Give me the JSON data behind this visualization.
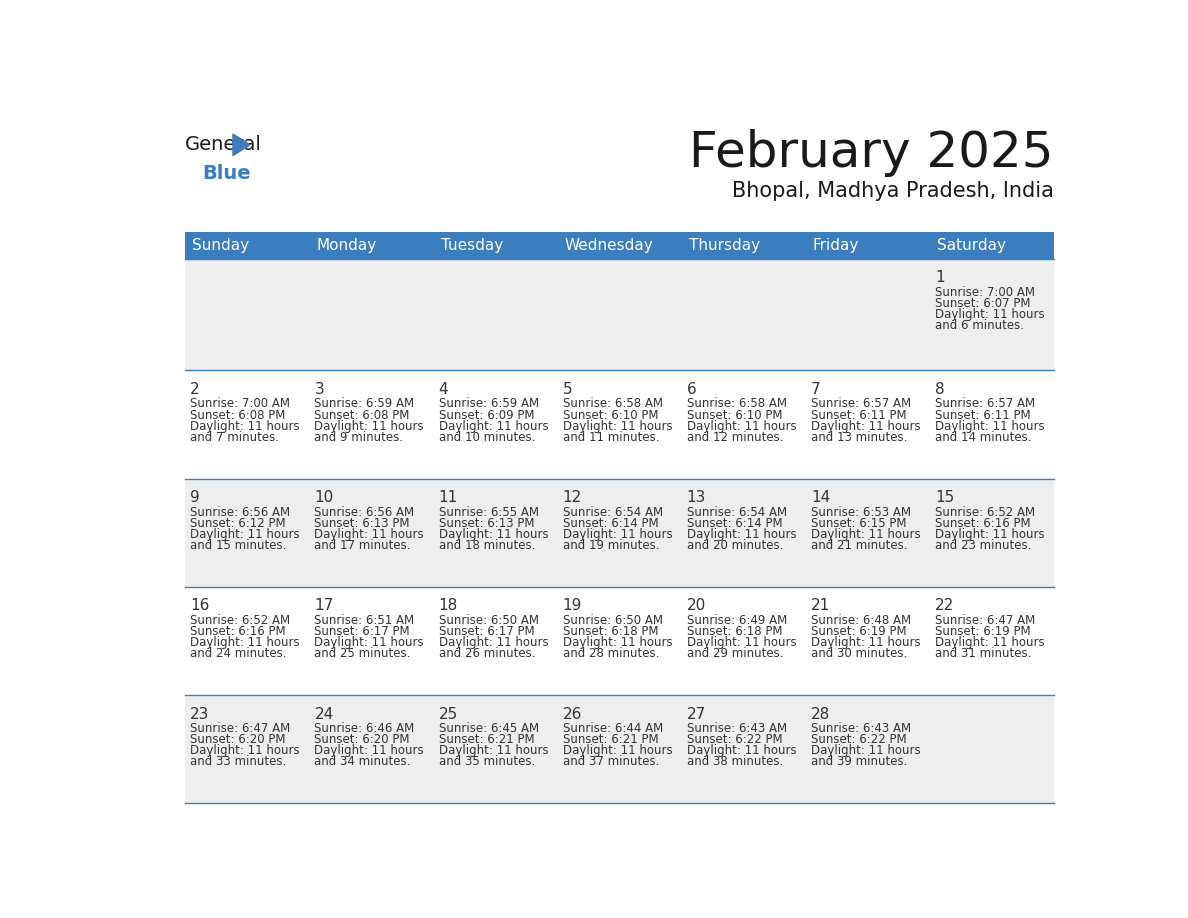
{
  "title": "February 2025",
  "subtitle": "Bhopal, Madhya Pradesh, India",
  "header_color": "#3a7ebf",
  "header_text_color": "#ffffff",
  "bg_color": "#ffffff",
  "cell_bg_row0": "#eeeeee",
  "cell_bg_odd": "#ffffff",
  "cell_bg_even": "#eeeeee",
  "border_color": "#3a7ebf",
  "date_color": "#333333",
  "info_color": "#333333",
  "day_headers": [
    "Sunday",
    "Monday",
    "Tuesday",
    "Wednesday",
    "Thursday",
    "Friday",
    "Saturday"
  ],
  "days": [
    {
      "date": 1,
      "col": 6,
      "row": 0,
      "sunrise": "7:00 AM",
      "sunset": "6:07 PM",
      "daylight": "11 hours and 6 minutes."
    },
    {
      "date": 2,
      "col": 0,
      "row": 1,
      "sunrise": "7:00 AM",
      "sunset": "6:08 PM",
      "daylight": "11 hours and 7 minutes."
    },
    {
      "date": 3,
      "col": 1,
      "row": 1,
      "sunrise": "6:59 AM",
      "sunset": "6:08 PM",
      "daylight": "11 hours and 9 minutes."
    },
    {
      "date": 4,
      "col": 2,
      "row": 1,
      "sunrise": "6:59 AM",
      "sunset": "6:09 PM",
      "daylight": "11 hours and 10 minutes."
    },
    {
      "date": 5,
      "col": 3,
      "row": 1,
      "sunrise": "6:58 AM",
      "sunset": "6:10 PM",
      "daylight": "11 hours and 11 minutes."
    },
    {
      "date": 6,
      "col": 4,
      "row": 1,
      "sunrise": "6:58 AM",
      "sunset": "6:10 PM",
      "daylight": "11 hours and 12 minutes."
    },
    {
      "date": 7,
      "col": 5,
      "row": 1,
      "sunrise": "6:57 AM",
      "sunset": "6:11 PM",
      "daylight": "11 hours and 13 minutes."
    },
    {
      "date": 8,
      "col": 6,
      "row": 1,
      "sunrise": "6:57 AM",
      "sunset": "6:11 PM",
      "daylight": "11 hours and 14 minutes."
    },
    {
      "date": 9,
      "col": 0,
      "row": 2,
      "sunrise": "6:56 AM",
      "sunset": "6:12 PM",
      "daylight": "11 hours and 15 minutes."
    },
    {
      "date": 10,
      "col": 1,
      "row": 2,
      "sunrise": "6:56 AM",
      "sunset": "6:13 PM",
      "daylight": "11 hours and 17 minutes."
    },
    {
      "date": 11,
      "col": 2,
      "row": 2,
      "sunrise": "6:55 AM",
      "sunset": "6:13 PM",
      "daylight": "11 hours and 18 minutes."
    },
    {
      "date": 12,
      "col": 3,
      "row": 2,
      "sunrise": "6:54 AM",
      "sunset": "6:14 PM",
      "daylight": "11 hours and 19 minutes."
    },
    {
      "date": 13,
      "col": 4,
      "row": 2,
      "sunrise": "6:54 AM",
      "sunset": "6:14 PM",
      "daylight": "11 hours and 20 minutes."
    },
    {
      "date": 14,
      "col": 5,
      "row": 2,
      "sunrise": "6:53 AM",
      "sunset": "6:15 PM",
      "daylight": "11 hours and 21 minutes."
    },
    {
      "date": 15,
      "col": 6,
      "row": 2,
      "sunrise": "6:52 AM",
      "sunset": "6:16 PM",
      "daylight": "11 hours and 23 minutes."
    },
    {
      "date": 16,
      "col": 0,
      "row": 3,
      "sunrise": "6:52 AM",
      "sunset": "6:16 PM",
      "daylight": "11 hours and 24 minutes."
    },
    {
      "date": 17,
      "col": 1,
      "row": 3,
      "sunrise": "6:51 AM",
      "sunset": "6:17 PM",
      "daylight": "11 hours and 25 minutes."
    },
    {
      "date": 18,
      "col": 2,
      "row": 3,
      "sunrise": "6:50 AM",
      "sunset": "6:17 PM",
      "daylight": "11 hours and 26 minutes."
    },
    {
      "date": 19,
      "col": 3,
      "row": 3,
      "sunrise": "6:50 AM",
      "sunset": "6:18 PM",
      "daylight": "11 hours and 28 minutes."
    },
    {
      "date": 20,
      "col": 4,
      "row": 3,
      "sunrise": "6:49 AM",
      "sunset": "6:18 PM",
      "daylight": "11 hours and 29 minutes."
    },
    {
      "date": 21,
      "col": 5,
      "row": 3,
      "sunrise": "6:48 AM",
      "sunset": "6:19 PM",
      "daylight": "11 hours and 30 minutes."
    },
    {
      "date": 22,
      "col": 6,
      "row": 3,
      "sunrise": "6:47 AM",
      "sunset": "6:19 PM",
      "daylight": "11 hours and 31 minutes."
    },
    {
      "date": 23,
      "col": 0,
      "row": 4,
      "sunrise": "6:47 AM",
      "sunset": "6:20 PM",
      "daylight": "11 hours and 33 minutes."
    },
    {
      "date": 24,
      "col": 1,
      "row": 4,
      "sunrise": "6:46 AM",
      "sunset": "6:20 PM",
      "daylight": "11 hours and 34 minutes."
    },
    {
      "date": 25,
      "col": 2,
      "row": 4,
      "sunrise": "6:45 AM",
      "sunset": "6:21 PM",
      "daylight": "11 hours and 35 minutes."
    },
    {
      "date": 26,
      "col": 3,
      "row": 4,
      "sunrise": "6:44 AM",
      "sunset": "6:21 PM",
      "daylight": "11 hours and 37 minutes."
    },
    {
      "date": 27,
      "col": 4,
      "row": 4,
      "sunrise": "6:43 AM",
      "sunset": "6:22 PM",
      "daylight": "11 hours and 38 minutes."
    },
    {
      "date": 28,
      "col": 5,
      "row": 4,
      "sunrise": "6:43 AM",
      "sunset": "6:22 PM",
      "daylight": "11 hours and 39 minutes."
    }
  ]
}
